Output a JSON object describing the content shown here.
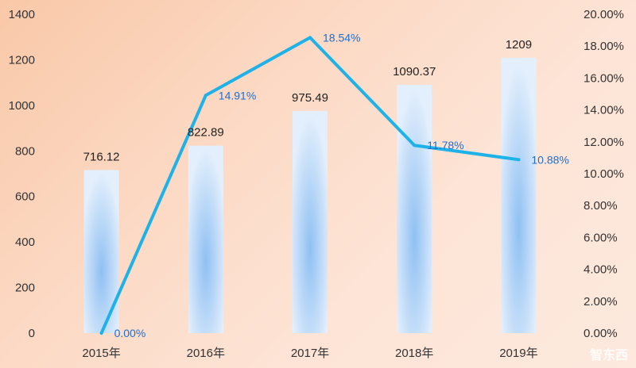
{
  "chart_data": {
    "type": "bar",
    "categories": [
      "2015年",
      "2016年",
      "2017年",
      "2018年",
      "2019年"
    ],
    "series": [
      {
        "type": "bar",
        "values": [
          716.12,
          822.89,
          975.49,
          1090.37,
          1209
        ],
        "labels": [
          "716.12",
          "822.89",
          "975.49",
          "1090.37",
          "1209"
        ],
        "axis": "left",
        "color": "#a8cdf5"
      },
      {
        "type": "line",
        "values": [
          0.0,
          14.91,
          18.54,
          11.78,
          10.88
        ],
        "labels": [
          "0.00%",
          "14.91%",
          "18.54%",
          "11.78%",
          "10.88%"
        ],
        "axis": "right",
        "color": "#1fb2e8"
      }
    ],
    "y_left": {
      "ylim": [
        0,
        1400
      ],
      "ticks": [
        "0",
        "200",
        "400",
        "600",
        "800",
        "1000",
        "1200",
        "1400"
      ]
    },
    "y_right": {
      "ylim": [
        0,
        20
      ],
      "ticks": [
        "0.00%",
        "2.00%",
        "4.00%",
        "6.00%",
        "8.00%",
        "10.00%",
        "12.00%",
        "14.00%",
        "16.00%",
        "18.00%",
        "20.00%"
      ]
    },
    "title": "",
    "xlabel": "",
    "ylabel": "",
    "grid": false,
    "legend": "none"
  },
  "watermark": "智东西"
}
